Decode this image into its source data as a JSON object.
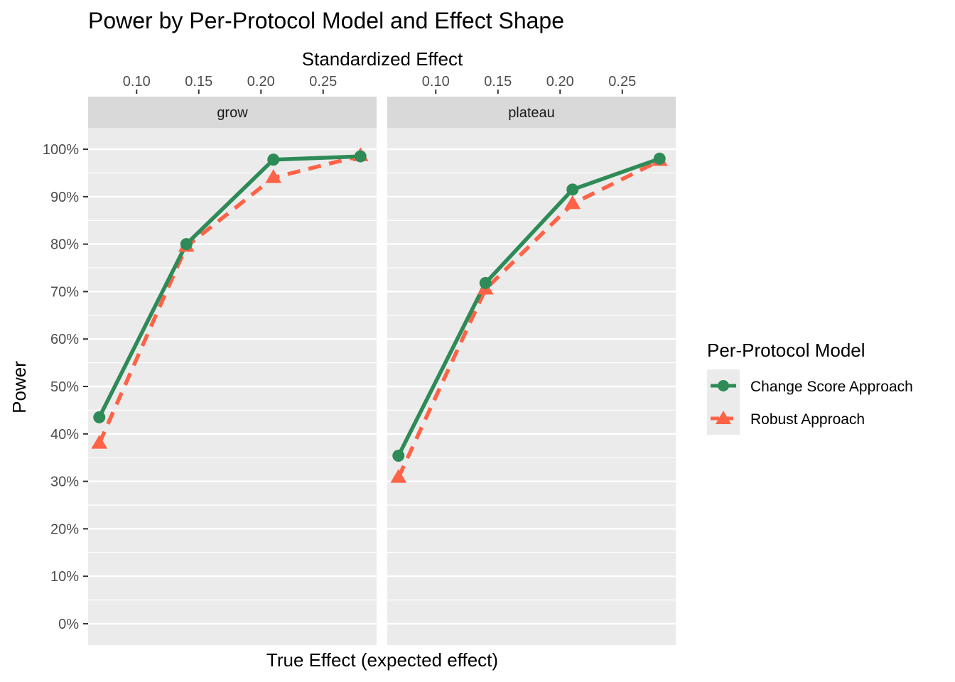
{
  "chart_data": {
    "type": "line",
    "title": "Power by Per-Protocol Model and Effect Shape",
    "xlabel": "True Effect (expected effect)",
    "x2label": "Standardized Effect",
    "ylabel": "Power",
    "ylim": [
      0,
      100
    ],
    "yticks": [
      "0%",
      "10%",
      "20%",
      "30%",
      "40%",
      "50%",
      "60%",
      "70%",
      "80%",
      "90%",
      "100%"
    ],
    "yticks_values": [
      0,
      10,
      20,
      30,
      40,
      50,
      60,
      70,
      80,
      90,
      100
    ],
    "x2ticks": [
      "0.10",
      "0.15",
      "0.20",
      "0.25"
    ],
    "x2ticks_values": [
      0.1,
      0.15,
      0.2,
      0.25
    ],
    "xlim_std": [
      0.061,
      0.293
    ],
    "grid": true,
    "legend": {
      "title": "Per-Protocol Model",
      "position": "right",
      "entries": [
        "Change Score Approach",
        "Robust Approach"
      ]
    },
    "colors": {
      "change": "#2e8b57",
      "robust": "#ff6347"
    },
    "panels": [
      {
        "name": "grow",
        "x_std": [
          0.07,
          0.14,
          0.21,
          0.28
        ],
        "series": [
          {
            "name": "Change Score Approach",
            "values": [
              43.5,
              80.0,
              97.8,
              98.5
            ]
          },
          {
            "name": "Robust Approach",
            "values": [
              38.0,
              79.5,
              94.0,
              98.6
            ]
          }
        ]
      },
      {
        "name": "plateau",
        "x_std": [
          0.07,
          0.14,
          0.21,
          0.28
        ],
        "series": [
          {
            "name": "Change Score Approach",
            "values": [
              35.4,
              71.8,
              91.5,
              98.0
            ]
          },
          {
            "name": "Robust Approach",
            "values": [
              30.8,
              70.5,
              88.5,
              97.6
            ]
          }
        ]
      }
    ]
  }
}
